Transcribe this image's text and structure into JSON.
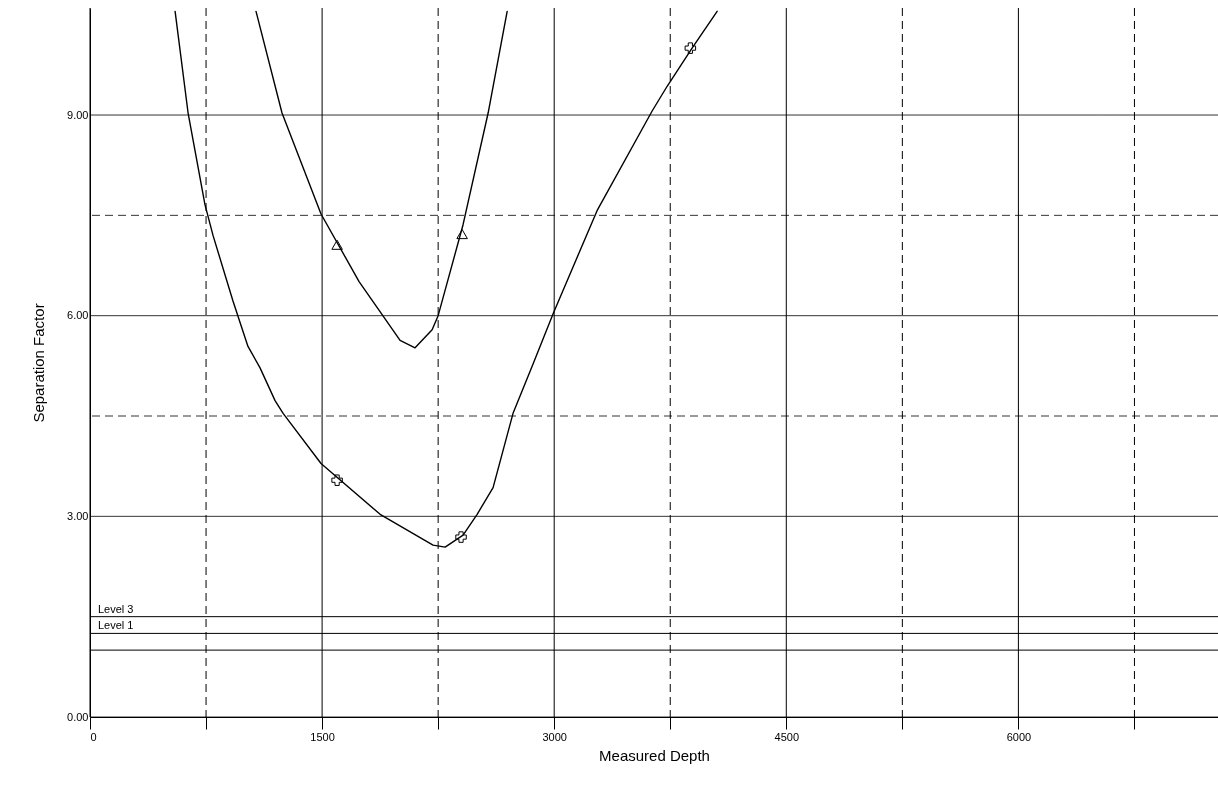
{
  "chart_data": {
    "type": "line",
    "xlabel": "Measured Depth",
    "ylabel": "Separation Factor",
    "xlim": [
      0,
      7290
    ],
    "ylim": [
      0,
      10.6
    ],
    "xticks": [
      0,
      {
        "value": 750,
        "label": null
      },
      1500,
      {
        "value": 2250,
        "label": null
      },
      3000,
      {
        "value": 3750,
        "label": null
      },
      4500,
      {
        "value": 5250,
        "label": null
      },
      6000,
      {
        "value": 6750,
        "label": null
      }
    ],
    "yticks": [
      {
        "value": 0,
        "label": "0.00"
      },
      {
        "value": 3,
        "label": "3.00"
      },
      {
        "value": 4.5,
        "label": null
      },
      {
        "value": 6,
        "label": "6.00"
      },
      {
        "value": 7.5,
        "label": null
      },
      {
        "value": 9,
        "label": "9.00"
      }
    ],
    "grid": true,
    "series": [
      {
        "color": "#000000",
        "x": [
          550,
          634,
          743,
          795,
          924,
          1021,
          1099,
          1196,
          1248,
          1493,
          1875,
          2217,
          2295,
          2411,
          2502,
          2605,
          2734,
          2864,
          2993,
          3277,
          3633,
          3730,
          3891,
          4053
        ],
        "values": [
          10.55,
          9.03,
          7.66,
          7.2,
          6.22,
          5.54,
          5.22,
          4.73,
          4.54,
          3.79,
          3.03,
          2.57,
          2.54,
          2.72,
          3.03,
          3.43,
          4.54,
          5.28,
          6.03,
          7.57,
          9.06,
          9.43,
          10.0,
          10.55
        ]
      },
      {
        "color": "#000000",
        "x": [
          1073,
          1241,
          1493,
          1739,
          2004,
          2101,
          2211,
          2250,
          2411,
          2573,
          2696
        ],
        "values": [
          10.55,
          9.03,
          7.52,
          6.51,
          5.63,
          5.52,
          5.79,
          6.0,
          7.36,
          9.03,
          10.55
        ]
      },
      {
        "type": "scatter",
        "marker": "cross",
        "color": "#000000",
        "x": [
          1597,
          2398,
          3880
        ],
        "values": [
          3.54,
          2.69,
          10.0
        ]
      },
      {
        "type": "scatter",
        "marker": "triangle",
        "color": "#000000",
        "x": [
          1597,
          2405
        ],
        "values": [
          7.06,
          7.22
        ]
      }
    ],
    "ref_lines": [
      {
        "axis": "y",
        "value": 1.5,
        "label": "Level 3",
        "color": "#000000"
      },
      {
        "axis": "y",
        "value": 1.25,
        "label": "Level 1",
        "color": "#000000"
      },
      {
        "axis": "y",
        "value": 1.0,
        "color": "#000000"
      }
    ]
  }
}
